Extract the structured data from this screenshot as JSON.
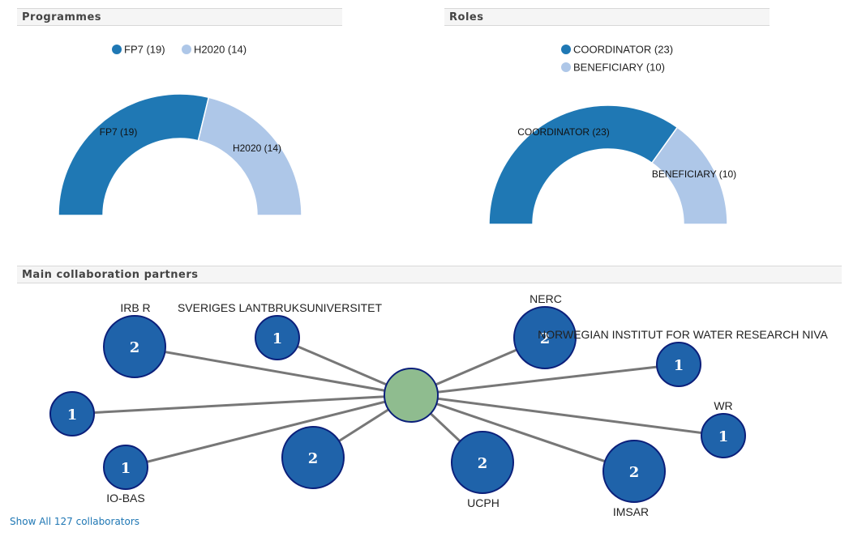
{
  "headers": {
    "programmes": "Programmes",
    "roles": "Roles",
    "collab": "Main collaboration partners"
  },
  "colors": {
    "dark_blue": "#1f78b4",
    "light_blue": "#aec7e8",
    "node_blue": "#1f63aa",
    "node_border": "#0b1f7a",
    "center_node": "#8fbc8f",
    "edge": "#777777"
  },
  "chart_data": [
    {
      "type": "pie",
      "variant": "semi-donut",
      "title": "Programmes",
      "legend_placement": "top",
      "slices": [
        {
          "label": "FP7 (19)",
          "name": "FP7",
          "value": 19,
          "color": "#1f78b4"
        },
        {
          "label": "H2020 (14)",
          "name": "H2020",
          "value": 14,
          "color": "#aec7e8"
        }
      ]
    },
    {
      "type": "pie",
      "variant": "semi-donut",
      "title": "Roles",
      "legend_placement": "top",
      "slices": [
        {
          "label": "COORDINATOR (23)",
          "name": "COORDINATOR",
          "value": 23,
          "color": "#1f78b4"
        },
        {
          "label": "BENEFICIARY (10)",
          "name": "BENEFICIARY",
          "value": 10,
          "color": "#aec7e8"
        }
      ]
    }
  ],
  "network": {
    "title": "Main collaboration partners",
    "nodes": [
      {
        "label": "IRB R",
        "value": 2
      },
      {
        "label": "SVERIGES LANTBRUKSUNIVERSITET",
        "value": 1
      },
      {
        "label": "NERC",
        "value": 2
      },
      {
        "label": "NORWEGIAN INSTITUT FOR WATER RESEARCH NIVA",
        "value": 1
      },
      {
        "label": "",
        "value": 1
      },
      {
        "label": "WR",
        "value": 1
      },
      {
        "label": "IO-BAS",
        "value": 1
      },
      {
        "label": "",
        "value": 2
      },
      {
        "label": "UCPH",
        "value": 2
      },
      {
        "label": "IMSAR",
        "value": 2
      }
    ]
  },
  "links": {
    "show_all": "Show All 127 collaborators"
  }
}
